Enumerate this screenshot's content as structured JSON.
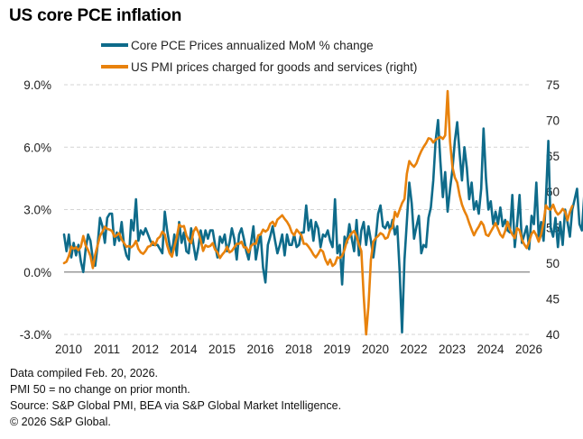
{
  "chart_data": {
    "type": "line",
    "title": "US core PCE inflation",
    "xlabel": "",
    "ylabel": "",
    "x_tick_labels": [
      "2010",
      "2011",
      "2012",
      "2014",
      "2015",
      "2016",
      "2018",
      "2019",
      "2020",
      "2022",
      "2023",
      "2024",
      "2026"
    ],
    "x_range": [
      "2010-01",
      "2026-01"
    ],
    "left_axis": {
      "ticks": [
        "9.0%",
        "6.0%",
        "3.0%",
        "0.0%",
        "-3.0%"
      ],
      "tick_values": [
        9,
        6,
        3,
        0,
        -3
      ],
      "ylim": [
        -3,
        9
      ]
    },
    "right_axis": {
      "ticks": [
        "75",
        "70",
        "65",
        "60",
        "55",
        "50",
        "45",
        "40"
      ],
      "tick_values": [
        75,
        70,
        65,
        60,
        55,
        50,
        45,
        40
      ],
      "ylim": [
        40,
        75
      ]
    },
    "gridlines": "dashed horizontal at left-axis ticks",
    "legend_position": "top-center",
    "series": [
      {
        "name": "Core PCE Prices annualized MoM % change",
        "axis": "left",
        "color": "#0e6b8a",
        "start": "2010-01",
        "frequency": "monthly",
        "values": [
          1.8,
          1.0,
          1.8,
          0.7,
          1.4,
          0.8,
          1.3,
          0.5,
          0.0,
          1.1,
          1.8,
          1.5,
          0.6,
          0.3,
          1.3,
          2.6,
          2.2,
          1.4,
          2.6,
          2.8,
          2.8,
          1.3,
          1.9,
          1.5,
          2.4,
          1.3,
          0.8,
          0.6,
          2.5,
          2.0,
          3.5,
          1.5,
          2.0,
          1.8,
          2.1,
          1.8,
          1.5,
          1.3,
          1.3,
          1.3,
          1.1,
          0.9,
          2.9,
          2.0,
          1.3,
          0.9,
          1.8,
          0.8,
          2.4,
          1.4,
          1.9,
          1.0,
          0.9,
          2.1,
          1.3,
          0.6,
          1.2,
          2.0,
          1.4,
          2.0,
          1.6,
          2.0,
          2.0,
          1.3,
          0.7,
          1.7,
          1.4,
          1.8,
          1.0,
          1.4,
          2.1,
          1.6,
          0.6,
          1.8,
          2.1,
          1.6,
          1.0,
          0.6,
          1.4,
          2.2,
          0.6,
          1.3,
          1.8,
          0.2,
          -0.5,
          1.3,
          1.7,
          2.2,
          1.5,
          0.9,
          1.3,
          1.8,
          0.8,
          1.8,
          1.3,
          1.3,
          1.8,
          1.2,
          1.3,
          1.9,
          1.9,
          3.2,
          2.0,
          2.5,
          1.5,
          2.4,
          2.1,
          1.2,
          1.8,
          1.7,
          2.0,
          1.5,
          1.2,
          3.5,
          0.9,
          1.3,
          -0.6,
          1.7,
          1.4,
          2.3,
          1.6,
          1.0,
          2.5,
          0.8,
          2.0,
          2.4,
          1.3,
          2.2,
          1.5,
          0.7,
          1.6,
          2.8,
          3.2,
          2.2,
          2.1,
          2.4,
          2.0,
          2.5,
          1.8,
          2.2,
          0.0,
          -2.9,
          0.6,
          2.4,
          4.3,
          3.3,
          1.6,
          2.2,
          2.7,
          0.9,
          1.3,
          1.2,
          2.6,
          3.1,
          4.4,
          6.3,
          7.3,
          5.3,
          3.6,
          4.8,
          2.9,
          4.0,
          4.9,
          6.3,
          7.2,
          5.7,
          4.4,
          6.0,
          5.0,
          3.5,
          4.3,
          3.0,
          3.4,
          2.8,
          4.0,
          6.9,
          4.5,
          3.0,
          3.4,
          2.3,
          2.9,
          2.3,
          3.1,
          2.2,
          2.5,
          2.0,
          1.9,
          3.7,
          1.2,
          2.3,
          3.7,
          1.4,
          1.8,
          2.2,
          1.1,
          2.7,
          2.3,
          4.3,
          1.7,
          2.4,
          1.5,
          3.5,
          6.3,
          2.1,
          1.7,
          2.6,
          1.2,
          2.4,
          1.3,
          3.0,
          2.4,
          1.7,
          3.0,
          3.5,
          4.0,
          2.3,
          2.0,
          3.7,
          4.7,
          2.3,
          1.6,
          2.0,
          1.8,
          2.4,
          3.5,
          3.3,
          2.0,
          2.0,
          4.3
        ],
        "note": "approximate monthly readings estimated from the plotted line"
      },
      {
        "name": "US PMI prices charged for goods and services (right)",
        "axis": "right",
        "color": "#e8820c",
        "start": "2010-01",
        "frequency": "monthly",
        "values": [
          50.0,
          50.2,
          51.0,
          52.3,
          52.0,
          52.2,
          51.8,
          52.3,
          53.8,
          52.5,
          51.8,
          51.0,
          49.3,
          51.2,
          52.5,
          53.8,
          54.4,
          55.1,
          54.8,
          54.7,
          54.5,
          53.7,
          53.9,
          54.2,
          53.3,
          52.8,
          52.3,
          52.4,
          52.2,
          52.5,
          53.1,
          52.0,
          51.5,
          51.3,
          51.7,
          52.3,
          52.4,
          53.0,
          52.5,
          53.4,
          53.7,
          54.4,
          54.0,
          52.5,
          51.4,
          50.9,
          52.3,
          53.6,
          55.4,
          55.1,
          55.2,
          53.9,
          53.2,
          52.8,
          54.4,
          55.0,
          54.3,
          53.2,
          51.7,
          52.5,
          52.3,
          52.4,
          52.8,
          51.9,
          51.5,
          50.7,
          51.2,
          51.6,
          52.3,
          51.5,
          51.7,
          52.2,
          52.7,
          52.7,
          53.0,
          52.2,
          52.2,
          51.5,
          52.4,
          52.7,
          52.7,
          53.9,
          54.0,
          54.7,
          54.4,
          54.7,
          55.5,
          55.8,
          55.2,
          56.1,
          56.4,
          56.7,
          56.2,
          55.8,
          55.2,
          54.3,
          53.9,
          54.7,
          54.3,
          53.9,
          52.7,
          52.7,
          52.3,
          51.8,
          51.2,
          50.8,
          51.3,
          51.9,
          51.6,
          50.5,
          49.8,
          50.5,
          49.6,
          49.9,
          50.8,
          50.7,
          51.0,
          51.9,
          53.1,
          53.7,
          54.2,
          54.5,
          53.8,
          52.6,
          51.7,
          45.4,
          40.0,
          44.0,
          50.5,
          53.0,
          53.5,
          53.8,
          54.2,
          54.0,
          53.4,
          53.6,
          54.7,
          55.0,
          57.2,
          56.5,
          57.5,
          58.4,
          59.0,
          62.5,
          64.3,
          63.8,
          63.5,
          64.0,
          64.9,
          65.7,
          66.3,
          66.8,
          67.5,
          67.4,
          66.9,
          67.3,
          67.5,
          67.7,
          67.4,
          67.9,
          74.1,
          67.0,
          63.5,
          62.0,
          61.3,
          59.5,
          58.2,
          57.3,
          56.6,
          55.6,
          54.7,
          53.9,
          54.6,
          55.1,
          55.8,
          55.3,
          54.0,
          53.8,
          54.4,
          55.0,
          55.6,
          54.8,
          54.0,
          53.6,
          54.5,
          55.8,
          54.7,
          54.0,
          53.5,
          54.9,
          54.6,
          53.3,
          52.6,
          52.1,
          53.0,
          54.1,
          54.5,
          53.9,
          53.0,
          54.0,
          55.7,
          58.1,
          57.6,
          57.5,
          58.2,
          57.3,
          56.8,
          57.1,
          57.6,
          57.2,
          56.0,
          57.2,
          58.0
        ],
        "note": "approximate monthly index readings estimated from the plotted line"
      }
    ]
  },
  "footer": {
    "line1": "Data compiled Feb. 20, 2026.",
    "line2": "PMI 50 = no change on prior month.",
    "line3": "Source: S&P Global PMI, BEA via S&P Global Market Intelligence.",
    "line4": "© 2026 S&P Global."
  }
}
